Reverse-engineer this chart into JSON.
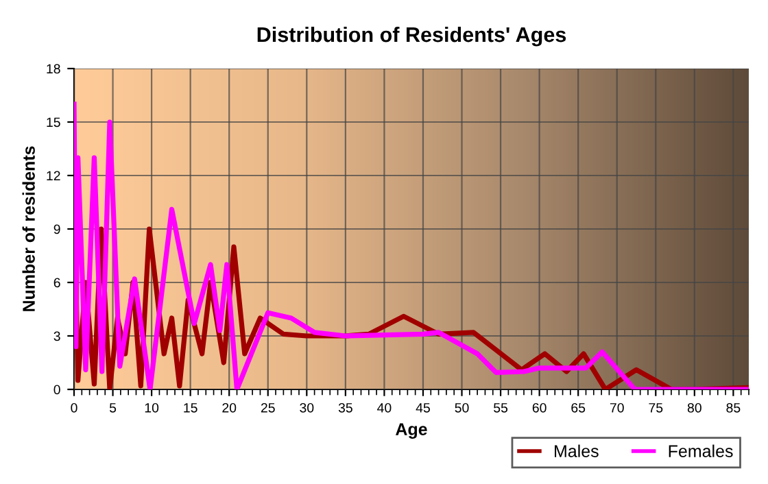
{
  "chart_data": {
    "type": "line",
    "title": "Distribution of Residents' Ages",
    "xlabel": "Age",
    "ylabel": "Number of residents",
    "xlim": [
      0,
      87
    ],
    "xticks": [
      0,
      5,
      10,
      15,
      20,
      25,
      30,
      35,
      40,
      45,
      50,
      55,
      60,
      65,
      70,
      75,
      80,
      85
    ],
    "ylim": [
      0,
      18
    ],
    "yticks": [
      0,
      3,
      6,
      9,
      12,
      15,
      18
    ],
    "grid": true,
    "legend": "bottom right",
    "marker": "none",
    "line_style": "solid",
    "series": [
      {
        "name": "Males",
        "color": "#a00000",
        "x": [
          0,
          0.25,
          0.5,
          1.5,
          2.6,
          3.5,
          4.6,
          5.6,
          6.6,
          7.6,
          8.6,
          9.7,
          11.6,
          12.6,
          13.6,
          14.7,
          16.5,
          17.6,
          19.3,
          20.6,
          22,
          24,
          27,
          30,
          35,
          38,
          42.5,
          47,
          51.5,
          57.7,
          60.7,
          63.5,
          65.7,
          68.5,
          72.5,
          77,
          80,
          87
        ],
        "values": [
          4,
          6,
          0.5,
          6,
          0.3,
          9,
          0,
          4,
          2,
          6,
          0.2,
          9,
          2,
          4,
          0.2,
          5,
          2,
          6,
          1.5,
          8,
          2,
          4,
          3.1,
          3,
          3,
          3.1,
          4.1,
          3.1,
          3.2,
          1.1,
          2,
          1,
          2,
          0,
          1.1,
          0,
          0,
          0.1
        ]
      },
      {
        "name": "Females",
        "color": "#ff00ff",
        "x": [
          0,
          0.25,
          0.5,
          1.5,
          2.6,
          3.6,
          4.6,
          5.9,
          7.8,
          9.8,
          12.6,
          15.5,
          17.6,
          18.8,
          19.7,
          21,
          25,
          28,
          31,
          35,
          45,
          47,
          52,
          54.4,
          58,
          60,
          66,
          68.1,
          72.3,
          87
        ],
        "values": [
          16,
          2.4,
          13,
          1.1,
          13,
          1,
          15,
          1.3,
          6.2,
          0,
          10.1,
          3.7,
          7,
          3.3,
          7,
          0,
          4.3,
          4,
          3.2,
          3,
          3.1,
          3.2,
          2,
          0.95,
          1,
          1.2,
          1.2,
          2.1,
          0,
          0
        ]
      }
    ]
  }
}
